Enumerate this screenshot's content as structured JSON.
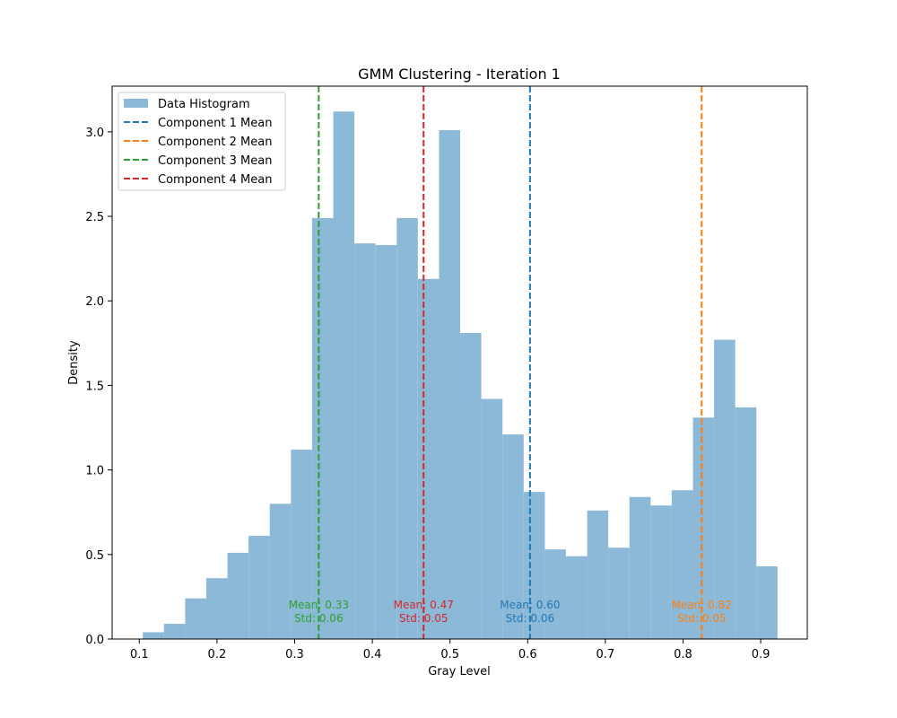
{
  "chart_data": {
    "type": "bar",
    "title": "GMM Clustering - Iteration 1",
    "xlabel": "Gray Level",
    "ylabel": "Density",
    "xlim": [
      0.065,
      0.96
    ],
    "ylim": [
      0,
      3.27
    ],
    "xticks": [
      0.1,
      0.2,
      0.3,
      0.4,
      0.5,
      0.6,
      0.7,
      0.8,
      0.9
    ],
    "xtick_labels": [
      "0.1",
      "0.2",
      "0.3",
      "0.4",
      "0.5",
      "0.6",
      "0.7",
      "0.8",
      "0.9"
    ],
    "yticks": [
      0.0,
      0.5,
      1.0,
      1.5,
      2.0,
      2.5,
      3.0
    ],
    "ytick_labels": [
      "0.0",
      "0.5",
      "1.0",
      "1.5",
      "2.0",
      "2.5",
      "3.0"
    ],
    "grid": false,
    "legend_position": "top-left",
    "histogram": {
      "name": "Data Histogram",
      "color": "#8db9d9",
      "bin_edges": [
        0.1045,
        0.1317,
        0.159,
        0.1862,
        0.2135,
        0.2407,
        0.2679,
        0.2952,
        0.3224,
        0.3497,
        0.3769,
        0.4041,
        0.4314,
        0.4586,
        0.4859,
        0.5131,
        0.5403,
        0.5676,
        0.5948,
        0.6221,
        0.6493,
        0.6766,
        0.7038,
        0.731,
        0.7583,
        0.7855,
        0.8128,
        0.84,
        0.8672,
        0.8945,
        0.9217
      ],
      "values": [
        0.04,
        0.09,
        0.24,
        0.36,
        0.51,
        0.61,
        0.8,
        1.12,
        2.49,
        3.12,
        2.34,
        2.33,
        2.49,
        2.13,
        3.01,
        1.81,
        1.42,
        1.21,
        0.87,
        0.53,
        0.49,
        0.76,
        0.54,
        0.84,
        0.79,
        0.88,
        1.31,
        1.77,
        1.37,
        0.43
      ]
    },
    "components": [
      {
        "name": "Component 1 Mean",
        "mean": 0.6,
        "x": 0.603,
        "color": "#1f77b4",
        "mean_label": "Mean: 0.60",
        "std_label": "Std: 0.06"
      },
      {
        "name": "Component 2 Mean",
        "mean": 0.82,
        "x": 0.824,
        "color": "#ff7f0e",
        "mean_label": "Mean: 0.82",
        "std_label": "Std: 0.05"
      },
      {
        "name": "Component 3 Mean",
        "mean": 0.33,
        "x": 0.331,
        "color": "#2ca02c",
        "mean_label": "Mean: 0.33",
        "std_label": "Std: 0.06"
      },
      {
        "name": "Component 4 Mean",
        "mean": 0.47,
        "x": 0.466,
        "color": "#d62728",
        "mean_label": "Mean: 0.47",
        "std_label": "Std: 0.05"
      }
    ]
  }
}
